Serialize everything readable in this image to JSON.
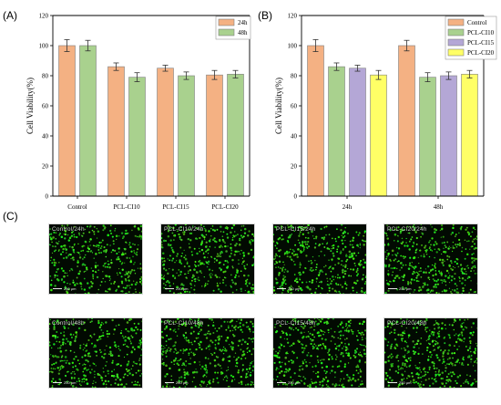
{
  "panel_a_label": "(A)",
  "panel_b_label": "(B)",
  "panel_c_label": "(C)",
  "chart_data": [
    {
      "type": "bar",
      "ylabel": "Cell Viability(%)",
      "xlabel": "",
      "ylim": [
        0,
        120
      ],
      "yticks": [
        "0",
        "20",
        "40",
        "60",
        "80",
        "100",
        "120"
      ],
      "categories": [
        "Control",
        "PCL-CI10",
        "PCL-CI15",
        "PCL-CI20"
      ],
      "series": [
        {
          "name": "24h",
          "values": [
            100,
            86,
            85,
            80.5
          ],
          "errors": [
            4,
            2.5,
            2,
            3
          ],
          "color": "#f4b183"
        },
        {
          "name": "48h",
          "values": [
            100,
            79,
            80,
            81
          ],
          "errors": [
            3.5,
            3,
            2.5,
            2.5
          ],
          "color": "#a9d18e"
        }
      ],
      "legend_position": "top-right"
    },
    {
      "type": "bar",
      "ylabel": "Cell Viability(%)",
      "xlabel": "",
      "ylim": [
        0,
        120
      ],
      "yticks": [
        "0",
        "20",
        "40",
        "60",
        "80",
        "100",
        "120"
      ],
      "categories": [
        "24h",
        "48h"
      ],
      "series": [
        {
          "name": "Control",
          "values": [
            100,
            100
          ],
          "errors": [
            4,
            3.5
          ],
          "color": "#f4b183"
        },
        {
          "name": "PCL-CI10",
          "values": [
            86,
            79
          ],
          "errors": [
            2.5,
            3
          ],
          "color": "#a9d18e"
        },
        {
          "name": "PCL-CI15",
          "values": [
            85,
            80
          ],
          "errors": [
            2,
            2.5
          ],
          "color": "#b4a7d6"
        },
        {
          "name": "PCL-CI20",
          "values": [
            80.5,
            81
          ],
          "errors": [
            3,
            2.5
          ],
          "color": "#ffff66"
        }
      ],
      "legend_position": "top-right"
    }
  ],
  "micrographs": [
    {
      "label": "Control/24h",
      "scale": "250 μm"
    },
    {
      "label": "PCL-CI10/24h",
      "scale": "250 μm"
    },
    {
      "label": "PCL-CI15/24h",
      "scale": "250 μm"
    },
    {
      "label": "PCL-CI20/24h",
      "scale": "250 μm"
    },
    {
      "label": "Control/48h",
      "scale": "250 μm"
    },
    {
      "label": "PCL-CI10/48h",
      "scale": "250 μm"
    },
    {
      "label": "PCL-CI15/48h",
      "scale": "250 μm"
    },
    {
      "label": "PCL-CI20/48h",
      "scale": "250 μm"
    }
  ]
}
